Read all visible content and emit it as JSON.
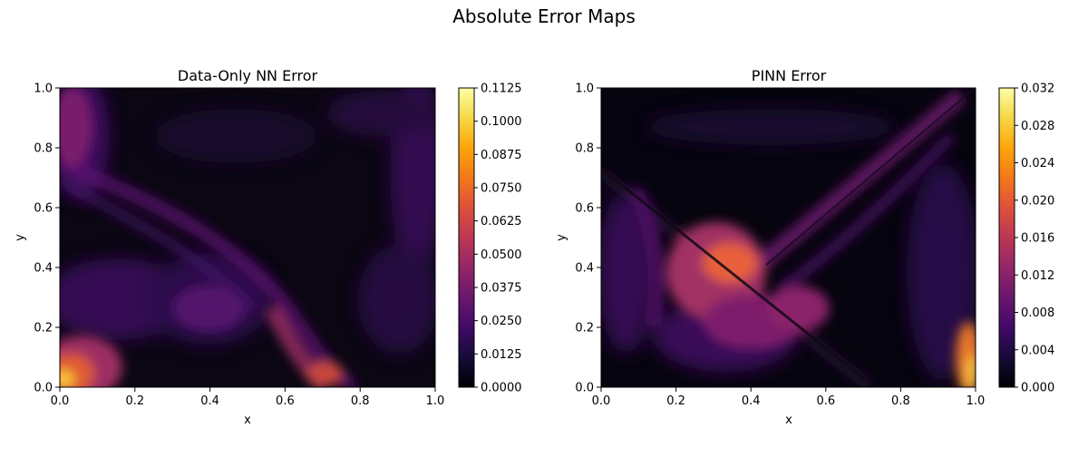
{
  "figure": {
    "title": "Absolute Error Maps"
  },
  "colors": {
    "colormap": "inferno",
    "axis": "#000000",
    "background": "#ffffff"
  },
  "chart_data": [
    {
      "type": "heatmap",
      "title": "Data-Only NN Error",
      "xlabel": "x",
      "ylabel": "y",
      "xlim": [
        0.0,
        1.0
      ],
      "ylim": [
        0.0,
        1.0
      ],
      "x_ticks": [
        "0.0",
        "0.2",
        "0.4",
        "0.6",
        "0.8",
        "1.0"
      ],
      "y_ticks": [
        "0.0",
        "0.2",
        "0.4",
        "0.6",
        "0.8",
        "1.0"
      ],
      "colorbar": {
        "range": [
          0.0,
          0.1125
        ],
        "ticks": [
          "0.0000",
          "0.0125",
          "0.0250",
          "0.0375",
          "0.0500",
          "0.0625",
          "0.0750",
          "0.0875",
          "0.1000",
          "0.1125"
        ]
      },
      "hotspots": [
        {
          "x": 0.02,
          "y": 0.04,
          "value": 0.105
        },
        {
          "x": 0.71,
          "y": 0.06,
          "value": 0.045
        },
        {
          "x": 0.02,
          "y": 0.85,
          "value": 0.04
        },
        {
          "x": 0.35,
          "y": 0.35,
          "value": 0.03
        },
        {
          "x": 0.12,
          "y": 0.3,
          "value": 0.025
        }
      ]
    },
    {
      "type": "heatmap",
      "title": "PINN Error",
      "xlabel": "x",
      "ylabel": "y",
      "xlim": [
        0.0,
        1.0
      ],
      "ylim": [
        0.0,
        1.0
      ],
      "x_ticks": [
        "0.0",
        "0.2",
        "0.4",
        "0.6",
        "0.8",
        "1.0"
      ],
      "y_ticks": [
        "0.0",
        "0.2",
        "0.4",
        "0.6",
        "0.8",
        "1.0"
      ],
      "colorbar": {
        "range": [
          0.0,
          0.032
        ],
        "ticks": [
          "0.000",
          "0.004",
          "0.008",
          "0.012",
          "0.016",
          "0.020",
          "0.024",
          "0.028",
          "0.032"
        ]
      },
      "hotspots": [
        {
          "x": 0.34,
          "y": 0.42,
          "value": 0.021
        },
        {
          "x": 0.99,
          "y": 0.05,
          "value": 0.028
        },
        {
          "x": 0.55,
          "y": 0.25,
          "value": 0.011
        },
        {
          "x": 0.1,
          "y": 0.3,
          "value": 0.008
        }
      ]
    }
  ]
}
